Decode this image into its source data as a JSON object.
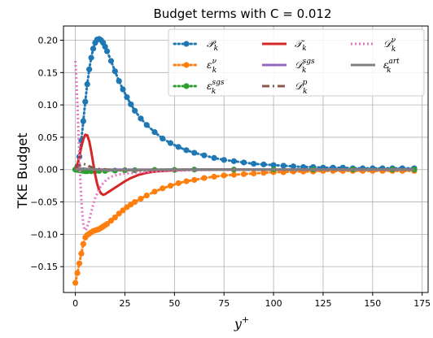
{
  "chart_data": {
    "type": "line",
    "title": "Budget terms with C = 0.012",
    "xlabel_base": "y",
    "xlabel_sup": "+",
    "ylabel": "TKE Budget",
    "xlim": [
      -6,
      178
    ],
    "ylim": [
      -0.19,
      0.222
    ],
    "xticks": [
      0,
      25,
      50,
      75,
      100,
      125,
      150,
      175
    ],
    "yticks": [
      -0.15,
      -0.1,
      -0.05,
      0.0,
      0.05,
      0.1,
      0.15,
      0.2
    ],
    "ytick_labels": [
      "−0.15",
      "−0.10",
      "−0.05",
      "0.00",
      "0.05",
      "0.10",
      "0.15",
      "0.20"
    ],
    "grid": true,
    "legend_placement": "top-right",
    "series": [
      {
        "key": "P",
        "legend": {
          "base": "𝒫",
          "sub": "k",
          "sup": ""
        },
        "color": "#1f77b4",
        "style": "dotted-marker",
        "x": [
          0,
          1,
          2,
          3,
          4,
          5,
          6,
          7,
          8,
          9,
          10,
          11,
          12,
          13,
          14,
          15,
          16,
          18,
          20,
          22,
          24,
          26,
          28,
          30,
          33,
          36,
          40,
          44,
          48,
          52,
          56,
          60,
          65,
          70,
          75,
          80,
          85,
          90,
          95,
          100,
          105,
          110,
          115,
          120,
          125,
          130,
          135,
          140,
          145,
          150,
          155,
          160,
          165,
          171
        ],
        "y": [
          0.0,
          0.005,
          0.02,
          0.045,
          0.075,
          0.105,
          0.132,
          0.155,
          0.173,
          0.187,
          0.196,
          0.201,
          0.202,
          0.2,
          0.196,
          0.19,
          0.183,
          0.168,
          0.152,
          0.137,
          0.124,
          0.112,
          0.101,
          0.091,
          0.079,
          0.069,
          0.058,
          0.048,
          0.041,
          0.035,
          0.03,
          0.026,
          0.022,
          0.018,
          0.015,
          0.013,
          0.011,
          0.009,
          0.008,
          0.007,
          0.006,
          0.005,
          0.004,
          0.004,
          0.003,
          0.003,
          0.003,
          0.002,
          0.002,
          0.002,
          0.002,
          0.002,
          0.002,
          0.002
        ]
      },
      {
        "key": "eps_nu",
        "legend": {
          "base": "ε",
          "sub": "k",
          "sup": "ν"
        },
        "color": "#ff7f0e",
        "style": "dotted-marker",
        "x": [
          0,
          1,
          2,
          3,
          4,
          5,
          6,
          7,
          8,
          9,
          10,
          11,
          12,
          13,
          14,
          15,
          16,
          18,
          20,
          22,
          24,
          26,
          28,
          30,
          33,
          36,
          40,
          44,
          48,
          52,
          56,
          60,
          65,
          70,
          75,
          80,
          85,
          90,
          95,
          100,
          105,
          110,
          115,
          120,
          125,
          130,
          135,
          140,
          145,
          150,
          155,
          160,
          165,
          171
        ],
        "y": [
          -0.175,
          -0.16,
          -0.145,
          -0.13,
          -0.115,
          -0.105,
          -0.101,
          -0.099,
          -0.097,
          -0.095,
          -0.094,
          -0.093,
          -0.092,
          -0.09,
          -0.088,
          -0.086,
          -0.084,
          -0.079,
          -0.074,
          -0.068,
          -0.063,
          -0.058,
          -0.054,
          -0.05,
          -0.045,
          -0.04,
          -0.034,
          -0.029,
          -0.025,
          -0.021,
          -0.018,
          -0.016,
          -0.013,
          -0.011,
          -0.009,
          -0.008,
          -0.007,
          -0.006,
          -0.005,
          -0.004,
          -0.004,
          -0.003,
          -0.003,
          -0.003,
          -0.002,
          -0.002,
          -0.002,
          -0.002,
          -0.002,
          -0.002,
          -0.002,
          -0.002,
          -0.002,
          -0.002
        ]
      },
      {
        "key": "eps_sgs",
        "legend": {
          "base": "ε",
          "sub": "k",
          "sup": "sgs"
        },
        "color": "#2ca02c",
        "style": "dotted-marker",
        "x": [
          0,
          1,
          2,
          3,
          4,
          5,
          6,
          8,
          10,
          12,
          15,
          20,
          25,
          30,
          40,
          50,
          60,
          80,
          100,
          120,
          140,
          160,
          171
        ],
        "y": [
          0.0,
          -0.0005,
          -0.001,
          -0.0015,
          -0.002,
          -0.0025,
          -0.0025,
          -0.0025,
          -0.0025,
          -0.002,
          -0.002,
          -0.0015,
          -0.001,
          -0.001,
          -0.0005,
          -0.0005,
          0.0,
          0.0,
          0.0,
          0.0,
          0.0,
          0.0,
          0.0
        ]
      },
      {
        "key": "T",
        "legend": {
          "base": "𝒯",
          "sub": "k",
          "sup": ""
        },
        "color": "#d62728",
        "style": "solid",
        "x": [
          0,
          1,
          2,
          3,
          4,
          5,
          6,
          7,
          8,
          9,
          10,
          11,
          12,
          13,
          14,
          15,
          16,
          17,
          18,
          20,
          22,
          25,
          28,
          32,
          36,
          40,
          50,
          60,
          80,
          100,
          130,
          171
        ],
        "y": [
          0.0,
          0.008,
          0.02,
          0.035,
          0.047,
          0.054,
          0.053,
          0.044,
          0.028,
          0.01,
          -0.008,
          -0.022,
          -0.032,
          -0.037,
          -0.039,
          -0.038,
          -0.036,
          -0.034,
          -0.032,
          -0.028,
          -0.024,
          -0.018,
          -0.013,
          -0.008,
          -0.005,
          -0.003,
          -0.001,
          0.0,
          0.0,
          0.0,
          0.0,
          0.0
        ]
      },
      {
        "key": "D_sgs",
        "legend": {
          "base": "𝒟",
          "sub": "k",
          "sup": "sgs"
        },
        "color": "#9467bd",
        "style": "solid",
        "x": [
          0,
          2,
          4,
          6,
          8,
          10,
          15,
          20,
          30,
          50,
          100,
          171
        ],
        "y": [
          0.0,
          0.0008,
          0.001,
          0.0008,
          0.0005,
          0.0003,
          0.0,
          0.0,
          0.0,
          0.0,
          0.0,
          0.0
        ]
      },
      {
        "key": "D_p",
        "legend": {
          "base": "𝒟",
          "sub": "k",
          "sup": "p"
        },
        "color": "#8c564b",
        "style": "dashdot",
        "x": [
          0,
          1,
          2,
          3,
          4,
          5,
          6,
          7,
          8,
          10,
          12,
          15,
          20,
          25,
          30,
          40,
          50,
          70,
          100,
          171
        ],
        "y": [
          0.0,
          0.003,
          0.006,
          0.008,
          0.009,
          0.008,
          0.007,
          0.005,
          0.004,
          0.002,
          0.001,
          0.0,
          -0.001,
          -0.001,
          -0.001,
          0.0,
          0.0,
          0.0,
          0.0,
          0.0
        ]
      },
      {
        "key": "D_nu",
        "legend": {
          "base": "𝒟",
          "sub": "k",
          "sup": "ν"
        },
        "color": "#e377c2",
        "style": "dotted",
        "x": [
          0,
          0.5,
          1,
          1.5,
          2,
          2.5,
          3,
          3.5,
          4,
          4.5,
          5,
          5.5,
          6,
          7,
          8,
          9,
          10,
          12,
          14,
          16,
          18,
          20,
          25,
          30,
          40,
          50,
          60,
          80,
          100,
          130,
          171
        ],
        "y": [
          0.168,
          0.14,
          0.105,
          0.06,
          0.02,
          -0.015,
          -0.045,
          -0.068,
          -0.084,
          -0.092,
          -0.094,
          -0.092,
          -0.088,
          -0.078,
          -0.066,
          -0.054,
          -0.044,
          -0.03,
          -0.021,
          -0.015,
          -0.011,
          -0.009,
          -0.006,
          -0.005,
          -0.003,
          -0.002,
          -0.001,
          0.0,
          0.0,
          0.0,
          0.0
        ]
      },
      {
        "key": "eps_art",
        "legend": {
          "base": "ε",
          "sub": "k",
          "sup": "art"
        },
        "color": "#7f7f7f",
        "style": "solid",
        "x": [
          0,
          2,
          4,
          6,
          8,
          10,
          15,
          20,
          30,
          50,
          100,
          171
        ],
        "y": [
          0.0,
          0.001,
          0.0015,
          0.001,
          0.0005,
          0.0,
          -0.001,
          -0.001,
          -0.0005,
          0.0,
          0.0,
          0.0
        ]
      }
    ]
  }
}
